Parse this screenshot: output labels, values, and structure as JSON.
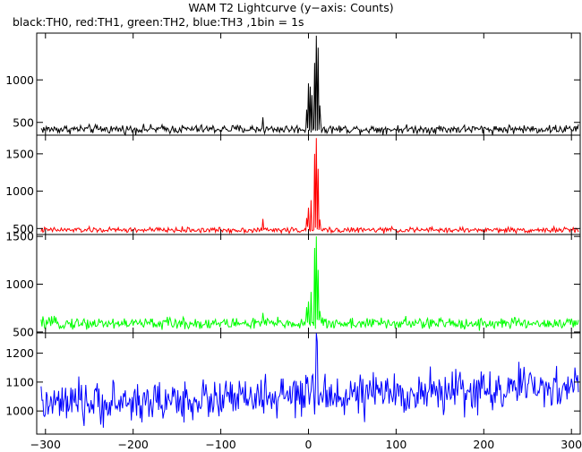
{
  "title": "WAM T2 Lightcurve (y−axis: Counts)",
  "subtitle": "black:TH0, red:TH1, green:TH2, blue:TH3 ,1bin = 1s",
  "chart_data": {
    "type": "line",
    "title": "WAM T2 Lightcurve (y−axis: Counts)",
    "subtitle": "black:TH0, red:TH1, green:TH2, blue:TH3 ,1bin = 1s",
    "x_range": [
      -310,
      310
    ],
    "x_ticks": [
      -300,
      -200,
      -100,
      0,
      100,
      200,
      300
    ],
    "x_tick_labels": [
      "−300",
      "−200",
      "−100",
      "0",
      "100",
      "200",
      "300"
    ],
    "panels": [
      {
        "series_label": "TH0",
        "color": "#000000",
        "ylim": [
          350,
          1550
        ],
        "y_ticks": [
          500,
          1000
        ],
        "y_tick_labels": [
          "500",
          "1000"
        ],
        "baseline": 420,
        "noise": 25,
        "drift": 0,
        "features": [
          {
            "x": -52,
            "value": 560
          },
          {
            "x": -2,
            "value": 650
          },
          {
            "x": 0,
            "value": 960
          },
          {
            "x": 2,
            "value": 920
          },
          {
            "x": 4,
            "value": 820
          },
          {
            "x": 7,
            "value": 1200
          },
          {
            "x": 9,
            "value": 1520
          },
          {
            "x": 11,
            "value": 1380
          },
          {
            "x": 13,
            "value": 700
          }
        ]
      },
      {
        "series_label": "TH1",
        "color": "#ff0000",
        "ylim": [
          420,
          1750
        ],
        "y_ticks": [
          500,
          1000,
          1500
        ],
        "y_tick_labels": [
          "500",
          "1000",
          "1500"
        ],
        "baseline": 480,
        "noise": 18,
        "drift": 0,
        "features": [
          {
            "x": -52,
            "value": 630
          },
          {
            "x": -2,
            "value": 640
          },
          {
            "x": 0,
            "value": 780
          },
          {
            "x": 3,
            "value": 880
          },
          {
            "x": 7,
            "value": 1500
          },
          {
            "x": 9,
            "value": 1710
          },
          {
            "x": 11,
            "value": 1300
          },
          {
            "x": 13,
            "value": 620
          }
        ]
      },
      {
        "series_label": "TH2",
        "color": "#00ff00",
        "ylim": [
          490,
          1520
        ],
        "y_ticks": [
          500,
          1000,
          1500
        ],
        "y_tick_labels": [
          "500",
          "1000",
          "1500"
        ],
        "baseline": 590,
        "noise": 30,
        "drift": 0,
        "features": [
          {
            "x": -52,
            "value": 700
          },
          {
            "x": -2,
            "value": 760
          },
          {
            "x": 0,
            "value": 820
          },
          {
            "x": 3,
            "value": 920
          },
          {
            "x": 7,
            "value": 1380
          },
          {
            "x": 9,
            "value": 1500
          },
          {
            "x": 11,
            "value": 1150
          },
          {
            "x": 13,
            "value": 720
          }
        ]
      },
      {
        "series_label": "TH3",
        "color": "#0000ff",
        "ylim": [
          920,
          1270
        ],
        "y_ticks": [
          1000,
          1100,
          1200
        ],
        "y_tick_labels": [
          "1000",
          "1100",
          "1200"
        ],
        "baseline": 1020,
        "noise": 35,
        "drift": 0.1,
        "features": [
          {
            "x": 9,
            "value": 1270
          },
          {
            "x": 10,
            "value": 1240
          },
          {
            "x": 240,
            "value": 1170
          }
        ]
      }
    ]
  }
}
